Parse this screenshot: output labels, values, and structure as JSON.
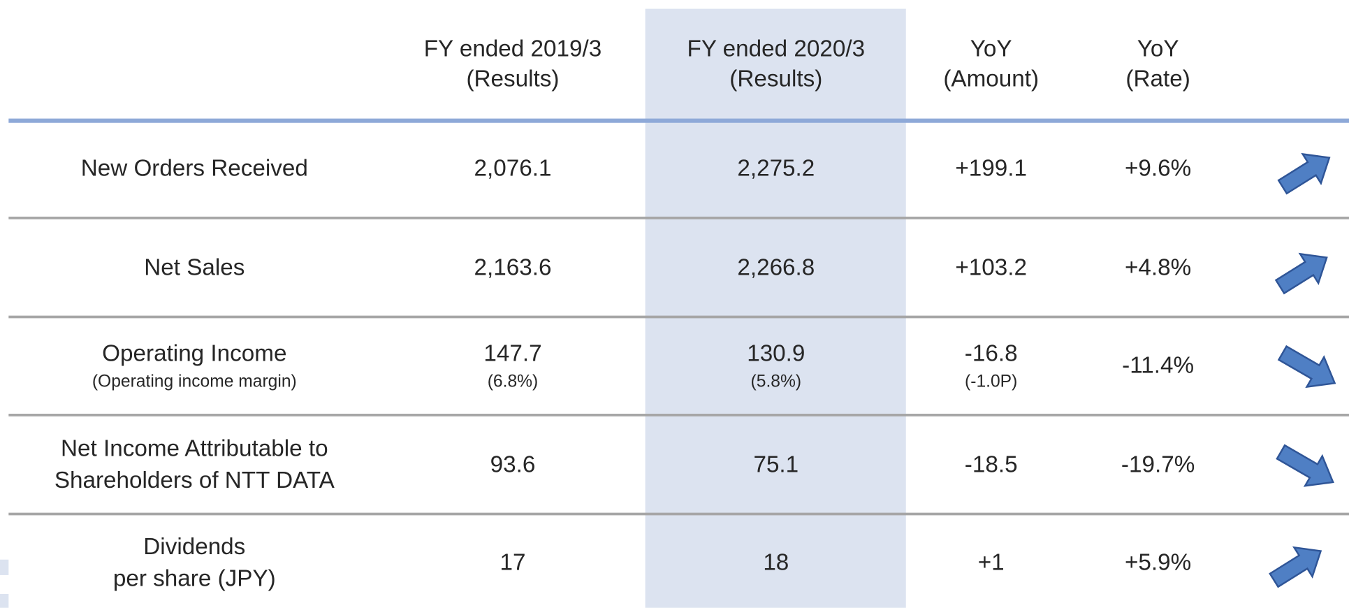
{
  "header": {
    "columns": [
      [
        "FY ended 2019/3",
        "(Results)"
      ],
      [
        "FY ended 2020/3",
        "(Results)"
      ],
      [
        "YoY",
        "(Amount)"
      ],
      [
        "YoY",
        "(Rate)"
      ]
    ]
  },
  "table": {
    "rows": [
      {
        "label": [
          "New Orders Received"
        ],
        "values": [
          "2,076.1",
          "2,275.2",
          "+199.1",
          "+9.6%"
        ]
      },
      {
        "label": [
          "Net Sales"
        ],
        "values": [
          "2,163.6",
          "2,266.8",
          "+103.2",
          "+4.8%"
        ]
      },
      {
        "label": [
          "Operating Income"
        ],
        "sublabel": "(Operating income margin)",
        "values": [
          "147.7",
          "130.9",
          "-16.8",
          "-11.4%"
        ],
        "subvalues": [
          "(6.8%)",
          "(5.8%)",
          "(-1.0P)"
        ]
      },
      {
        "label": [
          "Net Income Attributable to",
          "Shareholders of NTT DATA"
        ],
        "values": [
          "93.6",
          "75.1",
          "-18.5",
          "-19.7%"
        ]
      },
      {
        "label": [
          "Dividends",
          "per share (JPY)"
        ],
        "values": [
          "17",
          "18",
          "+1",
          "+5.9%"
        ]
      }
    ]
  }
}
